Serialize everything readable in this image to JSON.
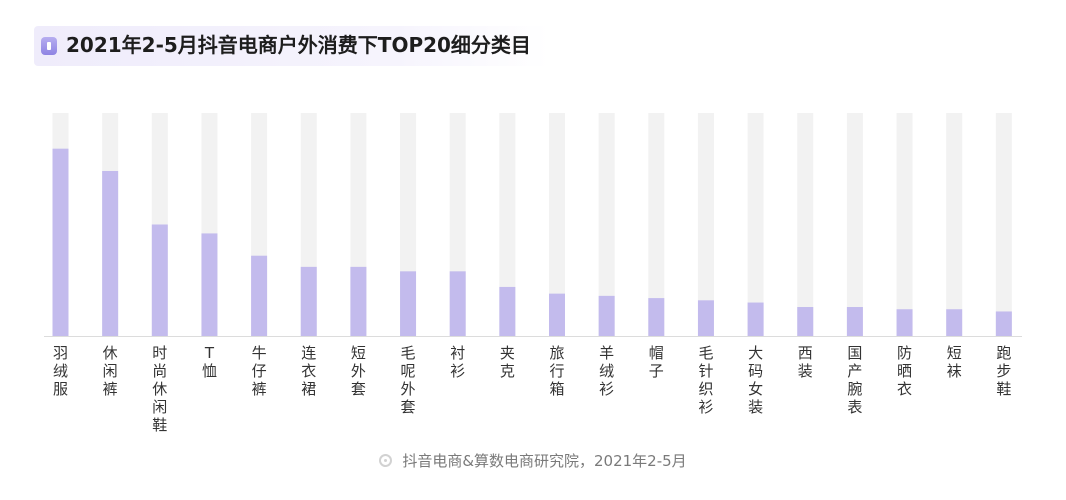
{
  "title": "2021年2-5月抖音电商户外消费下TOP20细分类目",
  "source": "抖音电商&算数电商研究院，2021年2-5月",
  "colors": {
    "bar": "#c3bbed",
    "track": "#f2f2f2",
    "icon": "#9c92e8"
  },
  "chart_data": {
    "type": "bar",
    "categories": [
      "羽绒服",
      "休闲裤",
      "时尚休闲鞋",
      "T恤",
      "牛仔裤",
      "连衣裙",
      "短外套",
      "毛呢外套",
      "衬衫",
      "夹克",
      "旅行箱",
      "羊绒衫",
      "帽子",
      "毛针织衫",
      "大码女装",
      "西装",
      "国产腕表",
      "防晒衣",
      "短袜",
      "跑步鞋"
    ],
    "values": [
      84,
      74,
      50,
      46,
      36,
      31,
      31,
      29,
      29,
      22,
      19,
      18,
      17,
      16,
      15,
      13,
      13,
      12,
      12,
      11
    ],
    "ylim": [
      0,
      100
    ],
    "grid": false
  }
}
